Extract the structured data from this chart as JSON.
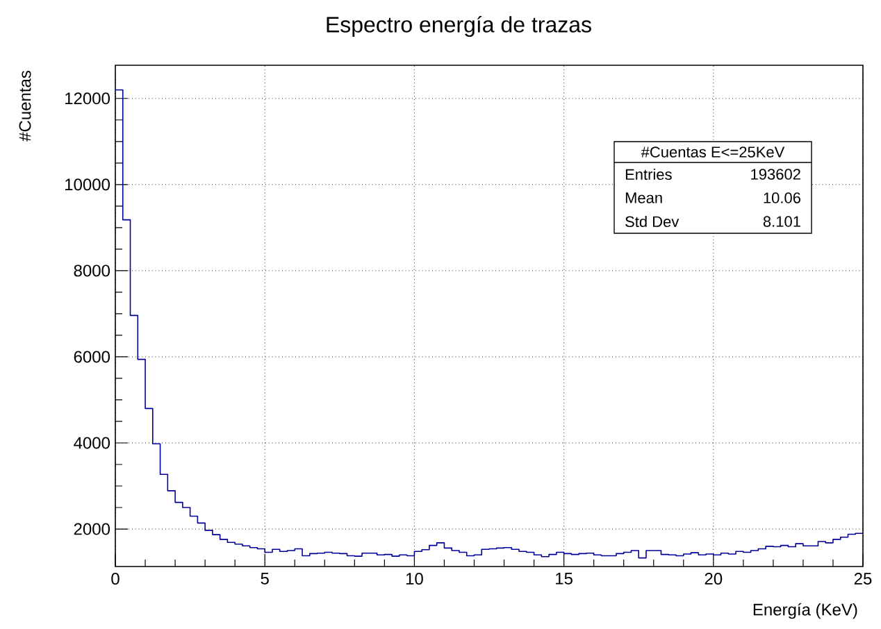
{
  "chart_data": {
    "type": "histogram",
    "title": "Espectro energía de trazas",
    "xlabel": "Energía (KeV)",
    "ylabel": "#Cuentas",
    "annotations": [
      "#Cuentas E<=25KeV",
      "Entries",
      "193602",
      "Mean",
      "10.06",
      "Std Dev",
      "8.101"
    ],
    "color": "#000099",
    "bins": [
      0,
      0.25,
      0.5,
      0.75,
      1,
      1.25,
      1.5,
      1.75,
      2,
      2.25,
      2.5,
      2.75,
      3,
      3.25,
      3.5,
      3.75,
      4,
      4.25,
      4.5,
      4.75,
      5,
      5.25,
      5.5,
      5.75,
      6,
      6.25,
      6.5,
      6.75,
      7,
      7.25,
      7.5,
      7.75,
      8,
      8.25,
      8.5,
      8.75,
      9,
      9.25,
      9.5,
      9.75,
      10,
      10.25,
      10.5,
      10.75,
      11,
      11.25,
      11.5,
      11.75,
      12,
      12.25,
      12.5,
      12.75,
      13,
      13.25,
      13.5,
      13.75,
      14,
      14.25,
      14.5,
      14.75,
      15,
      15.25,
      15.5,
      15.75,
      16,
      16.25,
      16.5,
      16.75,
      17,
      17.25,
      17.5,
      17.75,
      18,
      18.25,
      18.5,
      18.75,
      19,
      19.25,
      19.5,
      19.75,
      20,
      20.25,
      20.5,
      20.75,
      21,
      21.25,
      21.5,
      21.75,
      22,
      22.25,
      22.5,
      22.75,
      23,
      23.25,
      23.5,
      23.75,
      24,
      24.25,
      24.5,
      24.75,
      25
    ],
    "values": [
      12200,
      9180,
      6960,
      5940,
      4800,
      3980,
      3270,
      2890,
      2620,
      2500,
      2300,
      2140,
      1970,
      1870,
      1760,
      1690,
      1650,
      1610,
      1570,
      1540,
      1460,
      1530,
      1480,
      1500,
      1540,
      1380,
      1430,
      1440,
      1460,
      1440,
      1430,
      1380,
      1370,
      1440,
      1440,
      1400,
      1410,
      1370,
      1400,
      1380,
      1480,
      1520,
      1620,
      1680,
      1560,
      1500,
      1460,
      1380,
      1400,
      1530,
      1540,
      1560,
      1570,
      1530,
      1480,
      1460,
      1400,
      1360,
      1410,
      1460,
      1430,
      1410,
      1430,
      1440,
      1400,
      1380,
      1380,
      1430,
      1460,
      1500,
      1330,
      1500,
      1500,
      1410,
      1400,
      1380,
      1420,
      1450,
      1400,
      1420,
      1400,
      1440,
      1420,
      1480,
      1460,
      1500,
      1540,
      1600,
      1590,
      1620,
      1590,
      1660,
      1610,
      1610,
      1710,
      1680,
      1760,
      1810,
      1880,
      1900
    ],
    "xlim": [
      0,
      25
    ],
    "ylim": [
      1130,
      12770
    ],
    "xticks": [
      0,
      5,
      10,
      15,
      20,
      25
    ],
    "yticks": [
      2000,
      4000,
      6000,
      8000,
      10000,
      12000
    ],
    "grid": true
  }
}
